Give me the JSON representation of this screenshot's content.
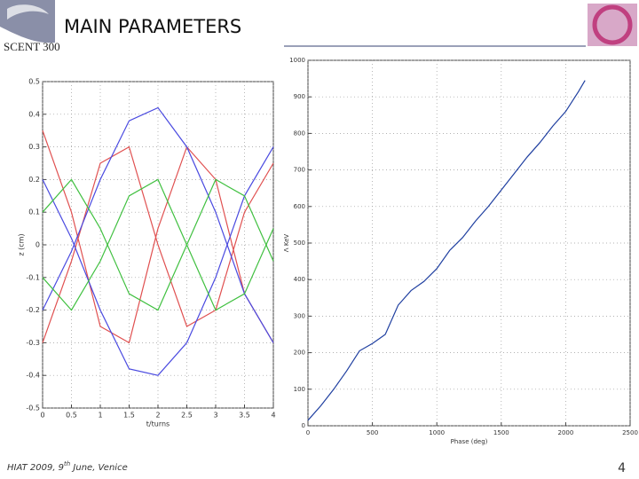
{
  "slide": {
    "title": "MAIN PARAMETERS",
    "logo": "SCENT 300",
    "footer": [
      "HIAT 2009, 9",
      "th",
      " June, Venice"
    ],
    "page": "4"
  },
  "chart_data": [
    {
      "type": "line",
      "xlabel": "t/turns",
      "ylabel": "z (cm)",
      "x": [
        0,
        0.5,
        1,
        1.5,
        2,
        2.5,
        3,
        3.5,
        4
      ],
      "series": [
        {
          "color": "#e05050",
          "values": [
            0.35,
            0.1,
            -0.25,
            -0.3,
            0.05,
            0.3,
            0.2,
            -0.15,
            -0.3
          ]
        },
        {
          "color": "#e05050",
          "values": [
            -0.3,
            -0.05,
            0.25,
            0.3,
            0,
            -0.25,
            -0.2,
            0.1,
            0.25
          ]
        },
        {
          "color": "#4a4ae0",
          "values": [
            0.2,
            0.02,
            -0.2,
            -0.38,
            -0.4,
            -0.3,
            -0.1,
            0.15,
            0.3
          ]
        },
        {
          "color": "#4a4ae0",
          "values": [
            -0.2,
            -0.02,
            0.2,
            0.38,
            0.42,
            0.3,
            0.1,
            -0.15,
            -0.3
          ]
        },
        {
          "color": "#40c040",
          "values": [
            0.1,
            0.2,
            0.05,
            -0.15,
            -0.2,
            0,
            0.2,
            0.15,
            -0.05
          ]
        },
        {
          "color": "#40c040",
          "values": [
            -0.1,
            -0.2,
            -0.05,
            0.15,
            0.2,
            0,
            -0.2,
            -0.15,
            0.05
          ]
        }
      ],
      "xlim": [
        0,
        4
      ],
      "xticks": [
        0,
        0.5,
        1,
        1.5,
        2,
        2.5,
        3,
        3.5,
        4
      ],
      "ylim": [
        -0.5,
        0.5
      ],
      "yticks": [
        -0.5,
        -0.4,
        -0.3,
        -0.2,
        -0.1,
        0,
        0.1,
        0.2,
        0.3,
        0.4,
        0.5
      ],
      "grid": true
    },
    {
      "type": "line",
      "xlabel": "Phase (deg)",
      "ylabel": "Λ KeV",
      "x": [
        0,
        100,
        200,
        300,
        400,
        500,
        600,
        700,
        800,
        900,
        1000,
        1100,
        1200,
        1300,
        1400,
        1500,
        1600,
        1700,
        1800,
        1900,
        2000,
        2100,
        2150
      ],
      "series": [
        {
          "color": "#1f3fa0",
          "values": [
            15,
            55,
            100,
            150,
            205,
            225,
            250,
            330,
            370,
            395,
            430,
            480,
            515,
            560,
            600,
            645,
            690,
            735,
            775,
            820,
            860,
            915,
            945
          ]
        }
      ],
      "xlim": [
        0,
        2500
      ],
      "xticks": [
        0,
        500,
        1000,
        1500,
        2000,
        2500
      ],
      "ylim": [
        0,
        1000
      ],
      "yticks": [
        0,
        100,
        200,
        300,
        400,
        500,
        600,
        700,
        800,
        900,
        1000
      ],
      "grid": true
    }
  ]
}
